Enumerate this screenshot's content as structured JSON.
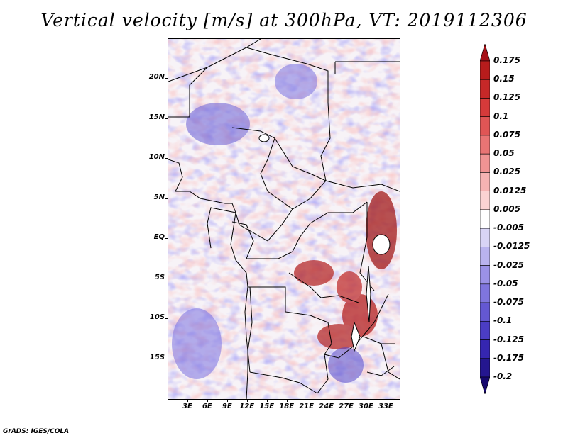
{
  "title": "Vertical velocity [m/s] at 300hPa, VT: 2019112306",
  "footer": "GrADS: IGES/COLA",
  "map": {
    "projection": "lat-lon",
    "lon_range": [
      0,
      35
    ],
    "lat_range": [
      -20,
      25
    ],
    "features": [
      "country-borders",
      "coastlines",
      "lakes"
    ],
    "lat_ticks": [
      {
        "value": 20,
        "label": "20N"
      },
      {
        "value": 15,
        "label": "15N"
      },
      {
        "value": 10,
        "label": "10N"
      },
      {
        "value": 5,
        "label": "5N"
      },
      {
        "value": 0,
        "label": "EQ"
      },
      {
        "value": -5,
        "label": "5S"
      },
      {
        "value": -10,
        "label": "10S"
      },
      {
        "value": -15,
        "label": "15S"
      }
    ],
    "lon_ticks": [
      {
        "value": 3,
        "label": "3E"
      },
      {
        "value": 6,
        "label": "6E"
      },
      {
        "value": 9,
        "label": "9E"
      },
      {
        "value": 12,
        "label": "12E"
      },
      {
        "value": 15,
        "label": "15E"
      },
      {
        "value": 18,
        "label": "18E"
      },
      {
        "value": 21,
        "label": "21E"
      },
      {
        "value": 24,
        "label": "24E"
      },
      {
        "value": 27,
        "label": "27E"
      },
      {
        "value": 30,
        "label": "30E"
      },
      {
        "value": 33,
        "label": "33E"
      }
    ]
  },
  "colorbar": {
    "orientation": "vertical",
    "placement": "right",
    "labels": [
      "0.175",
      "0.15",
      "0.125",
      "0.1",
      "0.075",
      "0.05",
      "0.025",
      "0.0125",
      "0.005",
      "-0.005",
      "-0.0125",
      "-0.025",
      "-0.05",
      "-0.075",
      "-0.1",
      "-0.125",
      "-0.175",
      "-0.2"
    ],
    "colors": [
      "#a50f15",
      "#b71c1c",
      "#c62828",
      "#d63a3a",
      "#e05555",
      "#e97474",
      "#f09393",
      "#f6b3b3",
      "#fbd3d3",
      "#ffffff",
      "#d8d4f5",
      "#b9b3ee",
      "#9b92e6",
      "#7f75dd",
      "#6458d2",
      "#4b3dc4",
      "#3526b0",
      "#24168f",
      "#16086e"
    ]
  }
}
